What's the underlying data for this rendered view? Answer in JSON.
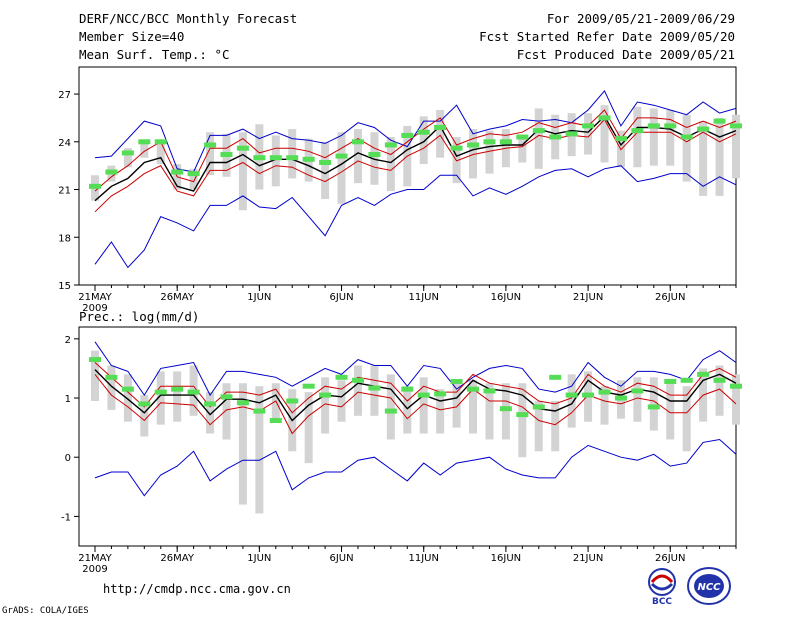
{
  "header": {
    "title": "DERF/NCC/BCC Monthly Forecast",
    "member": "Member Size=40",
    "variable": "Mean Surf. Temp.: °C",
    "period": "For 2009/05/21-2009/06/29",
    "started": "Fcst Started Refer Date 2009/05/20",
    "produced": "Fcst Produced Date 2009/05/21"
  },
  "prec_label": "Prec.: log(mm/d)",
  "footer": {
    "url": "http://cmdp.ncc.cma.gov.cn",
    "grads": "GrADS: COLA/IGES"
  },
  "logos": {
    "left": "BCC",
    "right": "NCC"
  },
  "colors": {
    "max_min": "#0000cc",
    "std": "#cc0000",
    "mean": "#000000",
    "box": "#d3d3d3",
    "obs": "#55dd55"
  },
  "chart_data": [
    {
      "type": "line",
      "title": "Mean Surf. Temp.: °C",
      "xlabel": "",
      "ylabel": "",
      "ylim": [
        15,
        28.7
      ],
      "yticks": [
        15,
        18,
        21,
        24,
        27
      ],
      "x_tick_labels": [
        "21MAY",
        "26MAY",
        "1JUN",
        "6JUN",
        "11JUN",
        "16JUN",
        "21JUN",
        "26JUN"
      ],
      "x_tick_days": [
        1,
        6,
        11,
        16,
        21,
        26,
        31,
        36
      ],
      "x_year": "2009",
      "days": 40,
      "series": [
        {
          "name": "max",
          "color": "#0000cc",
          "values": [
            23.0,
            23.1,
            24.2,
            25.3,
            25.0,
            22.3,
            22.1,
            24.4,
            24.4,
            24.8,
            24.2,
            24.6,
            24.2,
            24.1,
            23.9,
            24.4,
            25.2,
            24.9,
            24.1,
            23.7,
            25.3,
            25.3,
            26.3,
            24.5,
            24.8,
            25.0,
            25.4,
            25.3,
            25.4,
            25.2,
            26.0,
            27.2,
            25.0,
            26.5,
            26.3,
            26.0,
            25.7,
            26.5,
            25.8,
            26.1
          ]
        },
        {
          "name": "std_upper",
          "color": "#cc0000",
          "values": [
            20.9,
            21.8,
            22.5,
            23.4,
            24.0,
            21.8,
            21.5,
            23.6,
            23.6,
            24.2,
            23.3,
            23.6,
            23.6,
            23.4,
            23.0,
            23.6,
            24.2,
            23.6,
            23.2,
            24.0,
            24.8,
            25.5,
            23.8,
            24.2,
            24.5,
            24.4,
            24.6,
            25.2,
            24.9,
            25.2,
            25.0,
            26.0,
            24.2,
            25.5,
            25.5,
            25.4,
            24.9,
            25.3,
            24.9,
            25.3
          ]
        },
        {
          "name": "mean",
          "color": "#000000",
          "values": [
            20.3,
            21.2,
            21.7,
            22.7,
            23.0,
            21.2,
            20.9,
            22.7,
            22.7,
            23.2,
            22.5,
            22.9,
            22.9,
            22.5,
            22.0,
            22.6,
            23.3,
            22.9,
            22.7,
            23.5,
            24.0,
            25.0,
            23.1,
            23.5,
            23.7,
            23.8,
            23.8,
            24.8,
            24.5,
            24.7,
            24.6,
            25.6,
            23.8,
            24.9,
            24.9,
            24.8,
            24.3,
            24.8,
            24.3,
            24.7
          ]
        },
        {
          "name": "std_lower",
          "color": "#cc0000",
          "values": [
            19.6,
            20.6,
            21.2,
            22.0,
            22.5,
            20.9,
            20.6,
            22.2,
            22.2,
            22.7,
            22.0,
            22.5,
            22.4,
            21.9,
            21.5,
            22.1,
            22.8,
            22.4,
            22.2,
            23.1,
            23.6,
            24.4,
            22.8,
            23.2,
            23.4,
            23.6,
            23.7,
            24.4,
            24.2,
            24.4,
            24.3,
            25.4,
            23.5,
            24.6,
            24.6,
            24.6,
            24.0,
            24.6,
            24.0,
            24.5
          ]
        },
        {
          "name": "min",
          "color": "#0000cc",
          "values": [
            16.3,
            17.7,
            16.1,
            17.2,
            19.3,
            18.9,
            18.4,
            20.0,
            20.0,
            20.6,
            19.9,
            19.8,
            20.5,
            19.3,
            18.1,
            20.0,
            20.5,
            20.0,
            20.7,
            21.0,
            21.0,
            21.9,
            21.9,
            20.6,
            21.1,
            20.7,
            21.2,
            21.8,
            22.2,
            22.3,
            21.8,
            22.3,
            22.5,
            21.5,
            21.7,
            22.0,
            22.0,
            21.2,
            21.8,
            21.3
          ]
        }
      ],
      "boxes": [
        [
          20.3,
          21.9
        ],
        [
          21.5,
          22.5
        ],
        [
          22.4,
          23.6
        ],
        [
          23.0,
          24.1
        ],
        [
          22.6,
          24.1
        ],
        [
          21.0,
          22.6
        ],
        [
          21.0,
          22.3
        ],
        [
          21.9,
          24.6
        ],
        [
          21.8,
          24.5
        ],
        [
          19.7,
          24.6
        ],
        [
          21.0,
          25.1
        ],
        [
          21.2,
          24.4
        ],
        [
          21.7,
          24.8
        ],
        [
          21.5,
          24.2
        ],
        [
          20.4,
          24.0
        ],
        [
          20.1,
          24.6
        ],
        [
          21.4,
          24.8
        ],
        [
          21.3,
          24.6
        ],
        [
          20.9,
          24.3
        ],
        [
          21.2,
          25.0
        ],
        [
          22.6,
          25.6
        ],
        [
          23.0,
          26.0
        ],
        [
          21.4,
          24.3
        ],
        [
          21.7,
          24.8
        ],
        [
          22.0,
          24.7
        ],
        [
          22.4,
          24.8
        ],
        [
          22.7,
          24.4
        ],
        [
          22.3,
          26.1
        ],
        [
          22.9,
          25.7
        ],
        [
          23.1,
          25.8
        ],
        [
          23.2,
          25.8
        ],
        [
          22.7,
          26.3
        ],
        [
          22.4,
          24.7
        ],
        [
          22.4,
          26.2
        ],
        [
          22.5,
          26.1
        ],
        [
          22.5,
          26.0
        ],
        [
          21.5,
          25.7
        ],
        [
          20.6,
          25.3
        ],
        [
          20.6,
          25.5
        ],
        [
          21.7,
          25.7
        ]
      ],
      "obs": [
        21.2,
        22.1,
        23.3,
        24.0,
        24.0,
        22.1,
        22.0,
        23.8,
        23.2,
        23.6,
        23.0,
        23.0,
        23.0,
        22.9,
        22.7,
        23.1,
        24.0,
        23.2,
        23.8,
        24.4,
        24.6,
        24.9,
        23.6,
        23.8,
        24.0,
        24.0,
        24.3,
        24.7,
        24.3,
        24.5,
        25.0,
        25.5,
        24.2,
        24.7,
        25.0,
        25.0,
        24.3,
        24.8,
        25.3,
        25.0
      ]
    },
    {
      "type": "line",
      "title": "Prec.: log(mm/d)",
      "xlabel": "",
      "ylabel": "",
      "ylim": [
        -1.5,
        2.2
      ],
      "yticks": [
        -1,
        0,
        1,
        2
      ],
      "x_tick_labels": [
        "21MAY",
        "26MAY",
        "1JUN",
        "6JUN",
        "11JUN",
        "16JUN",
        "21JUN",
        "26JUN"
      ],
      "x_tick_days": [
        1,
        6,
        11,
        16,
        21,
        26,
        31,
        36
      ],
      "x_year": "2009",
      "days": 40,
      "series": [
        {
          "name": "max",
          "color": "#0000cc",
          "values": [
            1.95,
            1.55,
            1.45,
            1.05,
            1.5,
            1.55,
            1.6,
            1.05,
            1.45,
            1.45,
            1.4,
            1.35,
            1.2,
            1.35,
            1.5,
            1.4,
            1.65,
            1.55,
            1.55,
            1.2,
            1.55,
            1.5,
            1.15,
            1.35,
            1.5,
            1.55,
            1.5,
            1.15,
            1.1,
            1.2,
            1.6,
            1.35,
            1.2,
            1.45,
            1.45,
            1.4,
            1.3,
            1.65,
            1.8,
            1.6
          ]
        },
        {
          "name": "std_upper",
          "color": "#cc0000",
          "values": [
            1.6,
            1.35,
            1.1,
            0.85,
            1.2,
            1.2,
            1.2,
            0.85,
            1.1,
            1.1,
            1.05,
            1.15,
            0.75,
            1.0,
            1.2,
            1.15,
            1.35,
            1.3,
            1.25,
            0.95,
            1.2,
            1.1,
            1.1,
            1.4,
            1.25,
            1.2,
            1.15,
            0.95,
            0.9,
            1.0,
            1.4,
            1.2,
            1.1,
            1.25,
            1.2,
            1.05,
            1.05,
            1.4,
            1.5,
            1.35
          ]
        },
        {
          "name": "mean",
          "color": "#000000",
          "values": [
            1.48,
            1.2,
            0.98,
            0.75,
            1.05,
            1.05,
            1.05,
            0.72,
            0.98,
            0.98,
            0.92,
            1.05,
            0.62,
            0.88,
            1.05,
            1.02,
            1.25,
            1.2,
            1.15,
            0.82,
            1.05,
            0.95,
            1.0,
            1.3,
            1.15,
            1.12,
            1.05,
            0.82,
            0.78,
            0.9,
            1.3,
            1.1,
            1.05,
            1.15,
            1.1,
            0.95,
            0.95,
            1.3,
            1.4,
            1.25
          ]
        },
        {
          "name": "std_lower",
          "color": "#cc0000",
          "values": [
            1.4,
            1.05,
            0.85,
            0.62,
            0.92,
            0.9,
            0.88,
            0.55,
            0.8,
            0.85,
            0.78,
            0.95,
            0.4,
            0.7,
            0.9,
            0.85,
            1.1,
            1.05,
            1.0,
            0.65,
            0.9,
            0.8,
            0.85,
            1.15,
            0.95,
            0.95,
            0.85,
            0.62,
            0.55,
            0.75,
            1.05,
            0.95,
            0.9,
            1.0,
            0.95,
            0.75,
            0.75,
            1.05,
            1.15,
            0.9
          ]
        },
        {
          "name": "min",
          "color": "#0000cc",
          "values": [
            -0.35,
            -0.25,
            -0.25,
            -0.65,
            -0.3,
            -0.15,
            0.1,
            -0.4,
            -0.2,
            -0.05,
            -0.05,
            0.1,
            -0.55,
            -0.35,
            -0.25,
            -0.25,
            -0.05,
            0.0,
            -0.2,
            -0.4,
            -0.1,
            -0.3,
            -0.1,
            -0.05,
            0.0,
            -0.2,
            -0.3,
            -0.35,
            -0.35,
            0.0,
            0.2,
            0.1,
            0.0,
            -0.05,
            0.05,
            -0.15,
            -0.1,
            0.25,
            0.3,
            0.05
          ]
        }
      ],
      "boxes": [
        [
          0.95,
          1.8
        ],
        [
          0.8,
          1.55
        ],
        [
          0.6,
          1.4
        ],
        [
          0.35,
          1.05
        ],
        [
          0.55,
          1.45
        ],
        [
          0.6,
          1.45
        ],
        [
          0.7,
          1.55
        ],
        [
          0.4,
          1.1
        ],
        [
          0.3,
          1.25
        ],
        [
          -0.8,
          1.25
        ],
        [
          -0.95,
          1.2
        ],
        [
          0.6,
          1.25
        ],
        [
          0.1,
          1.15
        ],
        [
          -0.1,
          1.1
        ],
        [
          0.4,
          1.35
        ],
        [
          0.6,
          1.3
        ],
        [
          0.7,
          1.55
        ],
        [
          0.7,
          1.55
        ],
        [
          0.3,
          1.4
        ],
        [
          0.4,
          1.2
        ],
        [
          0.4,
          1.35
        ],
        [
          0.4,
          1.15
        ],
        [
          0.5,
          1.25
        ],
        [
          0.4,
          1.3
        ],
        [
          0.3,
          1.25
        ],
        [
          0.3,
          1.25
        ],
        [
          0.0,
          1.25
        ],
        [
          0.1,
          0.95
        ],
        [
          0.1,
          0.95
        ],
        [
          0.5,
          1.4
        ],
        [
          0.6,
          1.45
        ],
        [
          0.55,
          1.2
        ],
        [
          0.65,
          1.3
        ],
        [
          0.6,
          1.35
        ],
        [
          0.45,
          1.35
        ],
        [
          0.3,
          1.25
        ],
        [
          0.1,
          1.2
        ],
        [
          0.6,
          1.5
        ],
        [
          0.7,
          1.55
        ],
        [
          0.55,
          1.4
        ]
      ],
      "obs": [
        1.65,
        1.35,
        1.15,
        0.9,
        1.1,
        1.15,
        1.1,
        0.9,
        1.02,
        0.92,
        0.78,
        0.62,
        0.95,
        1.2,
        1.05,
        1.35,
        1.3,
        1.17,
        0.78,
        1.15,
        1.05,
        1.07,
        1.28,
        1.15,
        1.12,
        0.82,
        0.72,
        0.85,
        1.35,
        1.05,
        1.05,
        1.1,
        1.0,
        1.12,
        0.85,
        1.28,
        1.3,
        1.4,
        1.3,
        1.2
      ]
    }
  ]
}
